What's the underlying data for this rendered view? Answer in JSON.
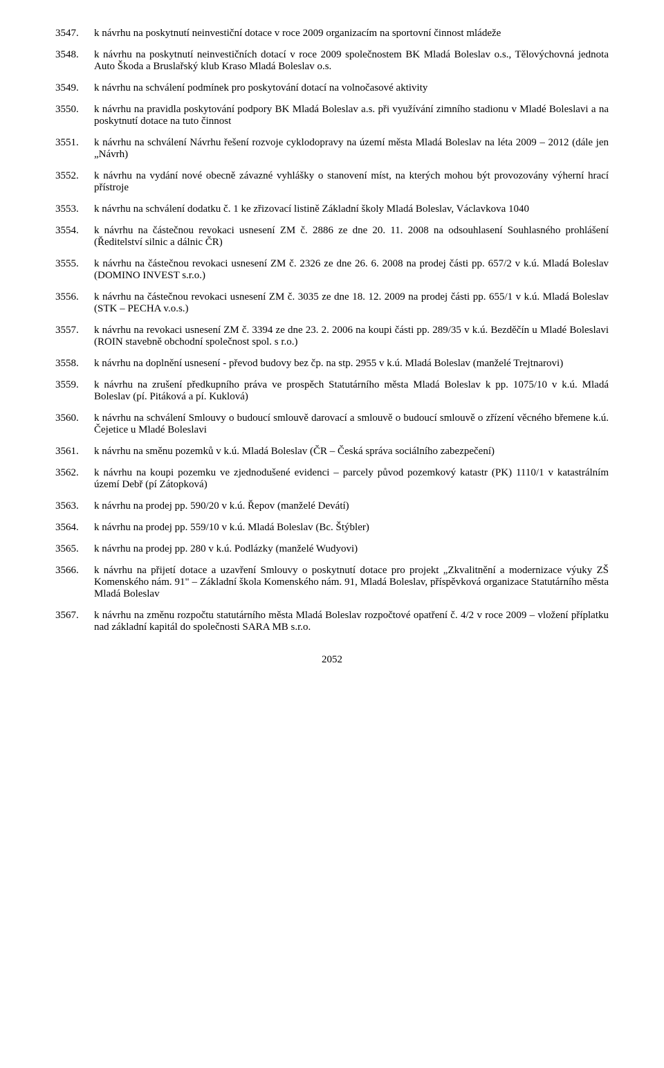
{
  "page_number": "2052",
  "items": [
    {
      "num": "3547.",
      "text": "k návrhu na poskytnutí neinvestiční dotace v roce 2009 organizacím na sportovní činnost mládeže"
    },
    {
      "num": "3548.",
      "text": "k návrhu na  poskytnutí neinvestičních  dotací v roce 2009 společnostem BK Mladá Boleslav o.s., Tělovýchovná jednota Auto Škoda a Bruslařský klub Kraso Mladá Boleslav o.s."
    },
    {
      "num": "3549.",
      "text": "k návrhu na schválení podmínek pro poskytování dotací na volnočasové aktivity"
    },
    {
      "num": "3550.",
      "text": "k návrhu na pravidla poskytování podpory BK Mladá Boleslav a.s.  při využívání zimního  stadionu v Mladé Boleslavi a na poskytnutí dotace na tuto činnost"
    },
    {
      "num": "3551.",
      "text": "k návrhu na schválení Návrhu řešení rozvoje cyklodopravy na území města Mladá Boleslav na léta 2009 – 2012 (dále jen „Návrh)"
    },
    {
      "num": "3552.",
      "text": "k návrhu na vydání nové obecně závazné vyhlášky o stanovení míst, na kterých mohou být provozovány výherní hrací přístroje"
    },
    {
      "num": "3553.",
      "text": "k návrhu na schválení dodatku č. 1 ke zřizovací listině Základní školy Mladá Boleslav, Václavkova 1040"
    },
    {
      "num": "3554.",
      "text": "k návrhu na částečnou revokaci usnesení ZM č. 2886 ze dne 20. 11. 2008 na odsouhlasení Souhlasného prohlášení (Ředitelství silnic a dálnic ČR)"
    },
    {
      "num": "3555.",
      "text": "k návrhu na částečnou revokaci usnesení ZM č. 2326 ze dne 26. 6. 2008  na prodej části pp. 657/2 v k.ú. Mladá Boleslav (DOMINO INVEST s.r.o.)"
    },
    {
      "num": "3556.",
      "text": "k návrhu na částečnou revokaci usnesení ZM č. 3035 ze dne 18. 12. 2009 na prodej části pp. 655/1 v k.ú. Mladá Boleslav (STK – PECHA v.o.s.)"
    },
    {
      "num": "3557.",
      "text": "k návrhu na revokaci usnesení ZM č. 3394 ze dne 23. 2. 2006 na koupi části pp. 289/35 v k.ú. Bezděčín u Mladé Boleslavi (ROIN stavebně obchodní společnost spol. s r.o.)"
    },
    {
      "num": "3558.",
      "text": "k návrhu na doplnění usnesení - převod budovy bez čp. na stp. 2955 v k.ú. Mladá Boleslav (manželé Trejtnarovi)"
    },
    {
      "num": "3559.",
      "text": "k návrhu na zrušení předkupního práva ve prospěch Statutárního města  Mladá Boleslav k pp. 1075/10 v k.ú. Mladá Boleslav (pí. Pitáková a pí. Kuklová)"
    },
    {
      "num": "3560.",
      "text": "k návrhu na schválení Smlouvy o budoucí smlouvě darovací a smlouvě o budoucí smlouvě o zřízení věcného břemene  k.ú. Čejetice u Mladé Boleslavi"
    },
    {
      "num": "3561.",
      "text": "k návrhu na směnu pozemků v k.ú. Mladá Boleslav (ČR – Česká správa sociálního zabezpečení)"
    },
    {
      "num": "3562.",
      "text": "k návrhu na koupi pozemku ve zjednodušené evidenci – parcely původ pozemkový katastr (PK) 1110/1 v katastrálním území Debř (pí Zátopková)"
    },
    {
      "num": "3563.",
      "text": "k návrhu na prodej pp. 590/20 v k.ú. Řepov (manželé Devátí)"
    },
    {
      "num": "3564.",
      "text": "k návrhu na prodej pp. 559/10 v k.ú. Mladá Boleslav (Bc. Štýbler)"
    },
    {
      "num": "3565.",
      "text": "k návrhu na prodej pp. 280 v k.ú. Podlázky (manželé Wudyovi)"
    },
    {
      "num": "3566.",
      "text": "k návrhu na přijetí dotace a uzavření Smlouvy o poskytnutí dotace pro projekt „Zkvalitnění a modernizace výuky ZŠ Komenského nám. 91\" – Základní škola Komenského nám. 91, Mladá Boleslav, příspěvková organizace Statutárního města Mladá Boleslav"
    },
    {
      "num": "3567.",
      "text": "k návrhu na změnu rozpočtu statutárního města Mladá Boleslav rozpočtové opatření č. 4/2 v roce 2009 – vložení příplatku nad základní kapitál do společnosti SARA MB s.r.o."
    }
  ]
}
